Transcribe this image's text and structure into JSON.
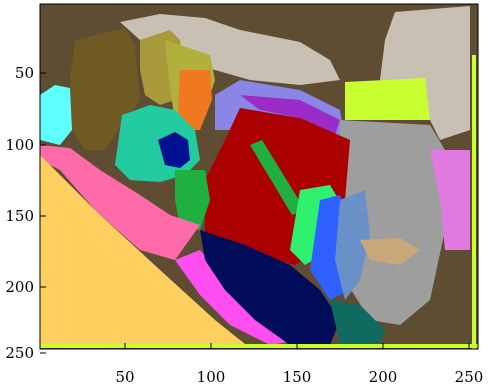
{
  "figure": {
    "type": "segmentation-label-image",
    "axes": {
      "x_ticks": [
        "50",
        "100",
        "150",
        "200",
        "250"
      ],
      "y_ticks": [
        "50",
        "100",
        "150",
        "200",
        "250"
      ]
    },
    "colors": {
      "background": "#5e4d32",
      "dark_olive": "#6e5a22",
      "light_gray": "#c8c0b4",
      "olive": "#a89a3a",
      "yellow_green": "#b2b03c",
      "orange": "#f07820",
      "teal": "#22cca0",
      "dark_blue": "#001090",
      "cyan": "#60ffff",
      "pink": "#ff6aa8",
      "light_orange": "#ffd060",
      "lavender": "#8a86e6",
      "purple": "#9c2cc8",
      "dark_red": "#aa0000",
      "green": "#20b040",
      "bright_green": "#30f070",
      "gray": "#9e9e9e",
      "navy": "#000c58",
      "blue": "#3060ff",
      "magenta": "#ff4ef0",
      "lime": "#c8ff30",
      "steel_blue": "#6a90c8",
      "dark_teal": "#106a60",
      "tan": "#c8a878",
      "salmon_violet": "#e07ae0"
    }
  }
}
